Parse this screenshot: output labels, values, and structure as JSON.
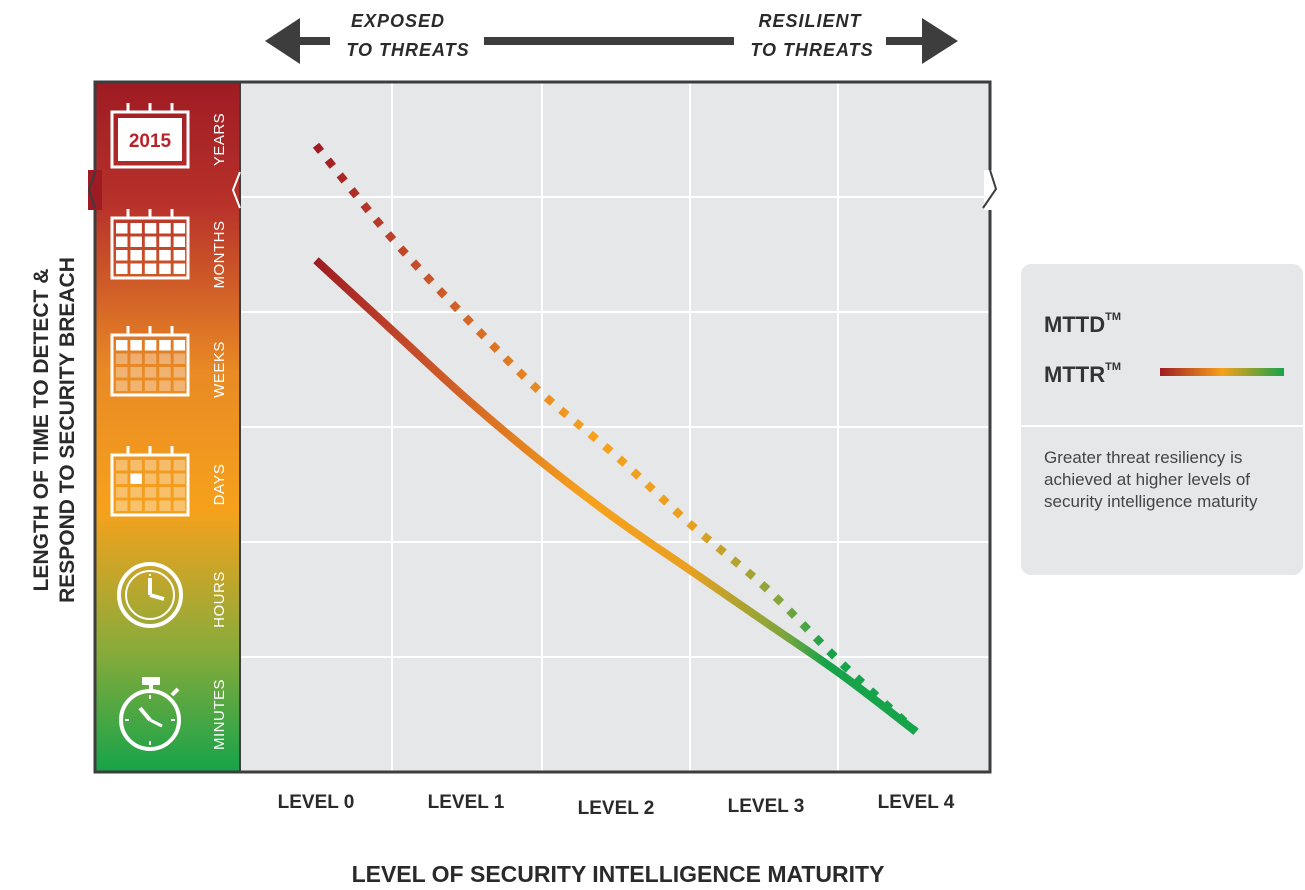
{
  "header": {
    "left_line1": "EXPOSED",
    "left_line2": "TO THREATS",
    "right_line1": "RESILIENT",
    "right_line2": "TO THREATS"
  },
  "y_axis": {
    "title_line1": "LENGTH OF TIME TO DETECT &",
    "title_line2": "RESPOND TO SECURITY BREACH"
  },
  "x_axis": {
    "title": "LEVEL OF SECURITY INTELLIGENCE MATURITY"
  },
  "calendar_year": "2015",
  "time_bands": [
    {
      "label": "YEARS",
      "icon": "calendar-year-icon"
    },
    {
      "label": "MONTHS",
      "icon": "calendar-full-icon"
    },
    {
      "label": "WEEKS",
      "icon": "calendar-week-icon"
    },
    {
      "label": "DAYS",
      "icon": "calendar-day-icon"
    },
    {
      "label": "HOURS",
      "icon": "clock-icon"
    },
    {
      "label": "MINUTES",
      "icon": "stopwatch-icon"
    }
  ],
  "colors": {
    "red": "#9e1b23",
    "orange": "#f6a11c",
    "green": "#16a34a",
    "plot_bg": "#e6e7e9",
    "frame": "#3d3d3d"
  },
  "legend": {
    "mttd_label": "MTTD",
    "mttr_label": "MTTR",
    "tm": "TM",
    "note": "Greater threat resiliency is achieved at higher levels of security intelligence maturity"
  },
  "chart_data": {
    "type": "line",
    "categories": [
      "LEVEL 0",
      "LEVEL 1",
      "LEVEL 2",
      "LEVEL 3",
      "LEVEL 4"
    ],
    "y_scale": "ordinal time bands (MINUTES to YEARS), position expressed in band units from bottom (0) to top (6)",
    "ylim": [
      0,
      6
    ],
    "grid": true,
    "series": [
      {
        "name": "MTTD",
        "style": "dotted",
        "x": [
          0,
          0.5,
          1,
          1.5,
          2,
          2.5,
          3,
          3.5,
          4
        ],
        "values": [
          5.45,
          4.65,
          3.95,
          3.3,
          2.75,
          2.15,
          1.6,
          0.95,
          0.35
        ]
      },
      {
        "name": "MTTR",
        "style": "solid",
        "x": [
          0,
          0.5,
          1,
          1.5,
          2,
          2.5,
          3,
          3.5,
          4
        ],
        "values": [
          4.45,
          3.85,
          3.25,
          2.7,
          2.2,
          1.75,
          1.3,
          0.85,
          0.35
        ]
      }
    ]
  }
}
